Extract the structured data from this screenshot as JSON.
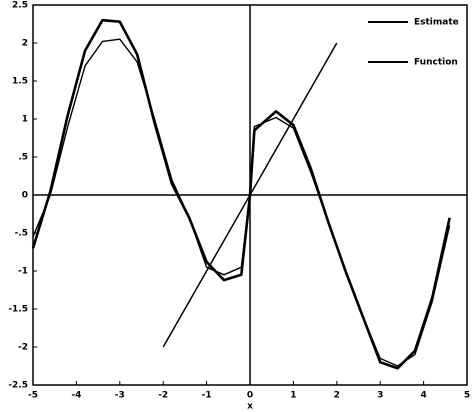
{
  "chart_data": {
    "type": "line",
    "x_label": "x",
    "x": [
      -5,
      -4.6,
      -4.2,
      -3.8,
      -3.4,
      -3.0,
      -2.6,
      -2.2,
      -1.8,
      -1.4,
      -1.0,
      -0.6,
      -0.2,
      0,
      0.1,
      0.6,
      1.0,
      1.4,
      1.8,
      2.2,
      2.6,
      3.0,
      3.4,
      3.8,
      4.2,
      4.6
    ],
    "series": [
      {
        "name": "Estimate",
        "color": "#000000",
        "values": [
          -0.7,
          0.05,
          1.05,
          1.9,
          2.3,
          2.28,
          1.85,
          0.95,
          0.15,
          -0.3,
          -0.88,
          -1.12,
          -1.05,
          0,
          0.85,
          1.1,
          0.92,
          0.35,
          -0.35,
          -1.0,
          -1.6,
          -2.2,
          -2.28,
          -2.05,
          -1.35,
          -0.3
        ]
      },
      {
        "name": "Function",
        "color": "#000000",
        "values": [
          -0.55,
          0.0,
          0.9,
          1.7,
          2.02,
          2.05,
          1.75,
          1.0,
          0.2,
          -0.3,
          -0.95,
          -1.05,
          -0.95,
          0,
          0.9,
          1.02,
          0.88,
          0.3,
          -0.35,
          -1.0,
          -1.6,
          -2.15,
          -2.25,
          -2.1,
          -1.4,
          -0.4
        ]
      }
    ],
    "reference_line": {
      "x": [
        -2,
        2
      ],
      "y": [
        -2,
        2
      ],
      "color": "#000000"
    },
    "xlim": [
      -5,
      5
    ],
    "ylim": [
      -2.5,
      2.5
    ],
    "xticks": [
      -5,
      -4,
      -3,
      -2,
      -1,
      0,
      1,
      2,
      3,
      4,
      5
    ],
    "yticks": [
      2.5,
      2,
      1.5,
      1,
      {
        "value": 0.5,
        "label": ".5"
      },
      0,
      {
        "value": -0.5,
        "label": "-.5"
      },
      -1,
      -1.5,
      -2,
      -2.5
    ],
    "legend": "upper right"
  }
}
